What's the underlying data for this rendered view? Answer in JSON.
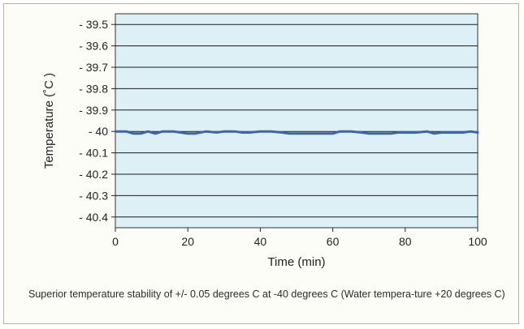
{
  "chart_data": {
    "type": "line",
    "title": "",
    "xlabel": "Time (min)",
    "ylabel": "Temperature (˚C )",
    "xlim": [
      0,
      100
    ],
    "ylim": [
      -40.45,
      -39.45
    ],
    "x_ticks": [
      0,
      20,
      40,
      60,
      80,
      100
    ],
    "x_tick_labels": [
      "0",
      "20",
      "40",
      "60",
      "80",
      "100"
    ],
    "y_ticks": [
      -39.5,
      -39.6,
      -39.7,
      -39.8,
      -39.9,
      -40.0,
      -40.1,
      -40.2,
      -40.3,
      -40.4
    ],
    "y_tick_labels": [
      "- 39.5",
      "- 39.6",
      "- 39.7",
      "- 39.8",
      "- 39.9",
      "- 40",
      "- 40.1",
      "- 40.2",
      "- 40.3",
      "- 40.4"
    ],
    "grid": "horizontal",
    "series": [
      {
        "color": "#3d64b0",
        "x": [
          0,
          3,
          5,
          7,
          9,
          11,
          13,
          16,
          18,
          20,
          22,
          25,
          28,
          30,
          33,
          35,
          37,
          40,
          43,
          46,
          48,
          52,
          56,
          58,
          60,
          62,
          65,
          68,
          70,
          73,
          76,
          78,
          80,
          83,
          86,
          88,
          90,
          93,
          96,
          98,
          100
        ],
        "y": [
          -40.0,
          -40.0,
          -40.01,
          -40.01,
          -40.0,
          -40.01,
          -40.0,
          -40.0,
          -40.005,
          -40.01,
          -40.01,
          -40.0,
          -40.005,
          -40.0,
          -40.0,
          -40.005,
          -40.005,
          -40.0,
          -40.0,
          -40.005,
          -40.01,
          -40.01,
          -40.01,
          -40.01,
          -40.01,
          -40.0,
          -40.0,
          -40.005,
          -40.01,
          -40.01,
          -40.01,
          -40.005,
          -40.005,
          -40.005,
          -40.0,
          -40.01,
          -40.005,
          -40.005,
          -40.005,
          -40.0,
          -40.005
        ]
      }
    ]
  },
  "caption": "Superior temperature stability of +/- 0.05 degrees C at -40 degrees C (Water tempera-ture +20 degrees C)",
  "colors": {
    "plot_background": "#dcf0f6",
    "frame_background": "#fdfdf8",
    "line": "#3d64b0",
    "grid": "#1a1a1a"
  }
}
